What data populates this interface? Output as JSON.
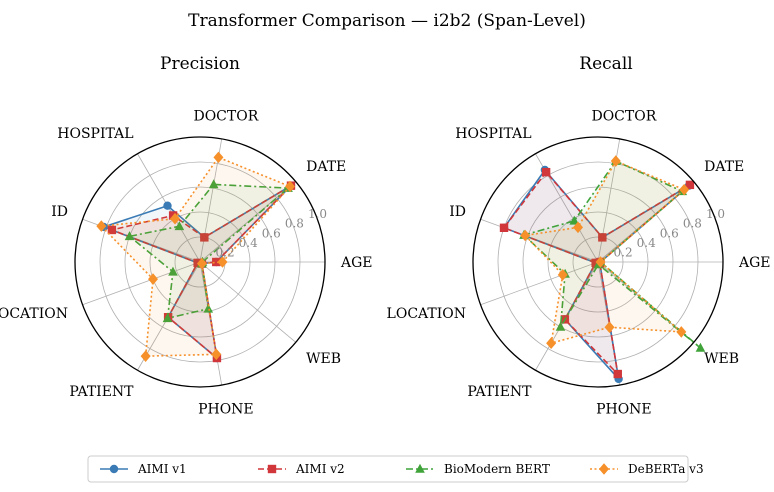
{
  "figure": {
    "title": "Transformer Comparison — i2b2 (Span-Level)"
  },
  "legend": {
    "placement": "bottom-center",
    "entries": [
      {
        "name": "AIMI v1",
        "color": "#3a7bb5",
        "line": "solid",
        "marker": "circle"
      },
      {
        "name": "AIMI v2",
        "color": "#d0363a",
        "line": "dashed",
        "marker": "square"
      },
      {
        "name": "BioModern BERT",
        "color": "#3fa33a",
        "line": "dashdot",
        "marker": "triangle"
      },
      {
        "name": "DeBERTa v3",
        "color": "#f6902a",
        "line": "dotted",
        "marker": "diamond"
      }
    ]
  },
  "chart_data": [
    {
      "type": "radar",
      "title": "Precision",
      "categories": [
        "AGE",
        "DATE",
        "DOCTOR",
        "HOSPITAL",
        "ID",
        "LOCATION",
        "PATIENT",
        "PHONE",
        "WEB"
      ],
      "rlim": [
        0,
        1.0
      ],
      "rticks": [
        "0.2",
        "0.4",
        "0.6",
        "0.8",
        "1.0"
      ],
      "grid": true,
      "series": [
        {
          "name": "AIMI v1",
          "values": [
            0.13,
            0.95,
            0.2,
            0.52,
            0.82,
            0.02,
            0.51,
            0.78,
            0.02
          ]
        },
        {
          "name": "AIMI v2",
          "values": [
            0.13,
            0.95,
            0.2,
            0.43,
            0.75,
            0.02,
            0.51,
            0.78,
            0.02
          ]
        },
        {
          "name": "BioModern BERT",
          "values": [
            0.02,
            0.92,
            0.63,
            0.33,
            0.6,
            0.23,
            0.52,
            0.38,
            0.02
          ]
        },
        {
          "name": "DeBERTa v3",
          "values": [
            0.18,
            0.94,
            0.85,
            0.4,
            0.84,
            0.4,
            0.87,
            0.75,
            0.02
          ]
        }
      ]
    },
    {
      "type": "radar",
      "title": "Recall",
      "categories": [
        "AGE",
        "DATE",
        "DOCTOR",
        "HOSPITAL",
        "ID",
        "LOCATION",
        "PATIENT",
        "PHONE",
        "WEB"
      ],
      "rlim": [
        0,
        1.0
      ],
      "rticks": [
        "0.2",
        "0.4",
        "0.6",
        "0.8",
        "1.0"
      ],
      "grid": true,
      "series": [
        {
          "name": "AIMI v1",
          "values": [
            0.02,
            0.95,
            0.2,
            0.85,
            0.8,
            0.02,
            0.53,
            0.95,
            0.02
          ]
        },
        {
          "name": "AIMI v2",
          "values": [
            0.02,
            0.96,
            0.2,
            0.83,
            0.8,
            0.02,
            0.53,
            0.91,
            0.02
          ]
        },
        {
          "name": "BioModern BERT",
          "values": [
            0.02,
            0.88,
            0.82,
            0.38,
            0.63,
            0.28,
            0.6,
            0.02,
            1.07
          ]
        },
        {
          "name": "DeBERTa v3",
          "values": [
            0.02,
            0.9,
            0.82,
            0.32,
            0.62,
            0.3,
            0.75,
            0.53,
            0.87
          ]
        }
      ]
    }
  ]
}
